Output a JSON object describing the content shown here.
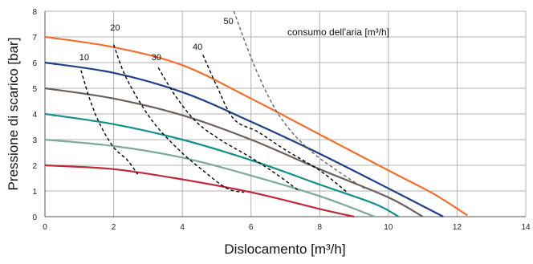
{
  "chart_data": {
    "type": "line",
    "title": "",
    "xlabel": "Dislocamento [m³/h]",
    "ylabel": "Pressione di scarico [bar]",
    "xlim": [
      0,
      14
    ],
    "ylim": [
      0,
      8
    ],
    "xticks": [
      0,
      2,
      4,
      6,
      8,
      10,
      12,
      14
    ],
    "yticks": [
      0,
      1,
      2,
      3,
      4,
      5,
      6,
      7,
      8
    ],
    "grid": true,
    "annotation": "consumo dell'aria [m³/h]",
    "series": [
      {
        "color": "#f07030",
        "points": [
          [
            0,
            7.0
          ],
          [
            2,
            6.6
          ],
          [
            4,
            5.9
          ],
          [
            6,
            4.6
          ],
          [
            8,
            3.2
          ],
          [
            10,
            1.8
          ],
          [
            11.3,
            0.9
          ],
          [
            12.3,
            0.05
          ]
        ]
      },
      {
        "color": "#1f3f86",
        "points": [
          [
            0,
            6.0
          ],
          [
            2,
            5.6
          ],
          [
            4,
            4.85
          ],
          [
            6,
            3.7
          ],
          [
            8,
            2.45
          ],
          [
            10,
            1.1
          ],
          [
            11.6,
            0.0
          ]
        ]
      },
      {
        "color": "#6b605a",
        "points": [
          [
            0,
            5.0
          ],
          [
            2,
            4.6
          ],
          [
            4,
            3.95
          ],
          [
            6,
            3.0
          ],
          [
            8,
            1.85
          ],
          [
            10,
            0.75
          ],
          [
            11.0,
            0.0
          ]
        ]
      },
      {
        "color": "#12908a",
        "points": [
          [
            0,
            4.0
          ],
          [
            2,
            3.6
          ],
          [
            4,
            3.0
          ],
          [
            6,
            2.2
          ],
          [
            8,
            1.25
          ],
          [
            9.6,
            0.5
          ],
          [
            10.3,
            0.0
          ]
        ]
      },
      {
        "color": "#7aab9a",
        "points": [
          [
            0,
            3.0
          ],
          [
            2,
            2.75
          ],
          [
            4,
            2.3
          ],
          [
            6,
            1.6
          ],
          [
            8,
            0.8
          ],
          [
            9.6,
            0.0
          ]
        ]
      },
      {
        "color": "#c0283a",
        "points": [
          [
            0,
            2.0
          ],
          [
            2,
            1.85
          ],
          [
            4,
            1.45
          ],
          [
            6,
            0.95
          ],
          [
            8,
            0.3
          ],
          [
            9.0,
            0.0
          ]
        ]
      }
    ],
    "consumption_lines": [
      {
        "label": "10",
        "label_at": [
          1.0,
          6.1
        ],
        "color": "#000000",
        "points": [
          [
            1.05,
            5.7
          ],
          [
            1.3,
            4.6
          ],
          [
            1.6,
            3.6
          ],
          [
            2.0,
            2.7
          ],
          [
            2.4,
            2.2
          ],
          [
            2.7,
            1.65
          ]
        ]
      },
      {
        "label": "20",
        "label_at": [
          1.9,
          7.25
        ],
        "color": "#000000",
        "points": [
          [
            2.0,
            6.7
          ],
          [
            2.3,
            5.6
          ],
          [
            2.7,
            4.6
          ],
          [
            3.2,
            3.6
          ],
          [
            3.9,
            2.6
          ],
          [
            4.6,
            1.8
          ],
          [
            5.3,
            1.1
          ],
          [
            5.8,
            0.95
          ]
        ]
      },
      {
        "label": "30",
        "label_at": [
          3.1,
          6.1
        ],
        "color": "#000000",
        "points": [
          [
            3.3,
            5.8
          ],
          [
            3.8,
            4.7
          ],
          [
            4.4,
            3.7
          ],
          [
            5.1,
            3.0
          ],
          [
            6.0,
            2.3
          ],
          [
            6.8,
            1.6
          ],
          [
            7.4,
            1.0
          ]
        ]
      },
      {
        "label": "40",
        "label_at": [
          4.3,
          6.5
        ],
        "color": "#000000",
        "points": [
          [
            4.6,
            6.3
          ],
          [
            5.0,
            5.1
          ],
          [
            5.5,
            3.8
          ],
          [
            6.2,
            3.3
          ],
          [
            7.0,
            2.6
          ],
          [
            8.0,
            1.8
          ],
          [
            8.8,
            0.95
          ]
        ]
      },
      {
        "label": "50",
        "label_at": [
          5.2,
          7.5
        ],
        "color": "#666666",
        "points": [
          [
            5.5,
            8.0
          ],
          [
            6.0,
            6.2
          ],
          [
            6.5,
            4.7
          ],
          [
            7.0,
            3.6
          ],
          [
            7.7,
            2.6
          ],
          [
            8.5,
            1.8
          ],
          [
            9.3,
            1.1
          ]
        ]
      }
    ]
  }
}
